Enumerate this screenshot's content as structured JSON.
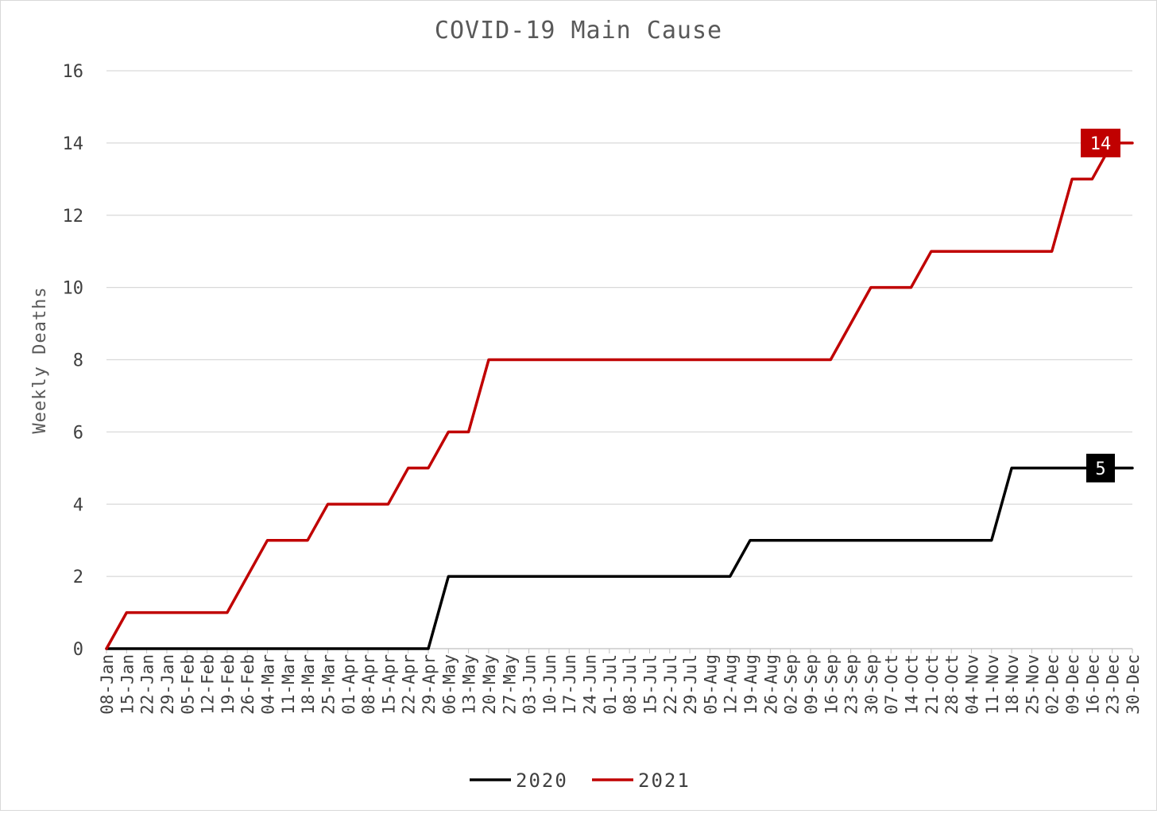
{
  "chart_data": {
    "type": "line",
    "title": "COVID-19 Main Cause",
    "xlabel": "",
    "ylabel": "Weekly Deaths",
    "ylim": [
      0,
      16
    ],
    "yticks": [
      0,
      2,
      4,
      6,
      8,
      10,
      12,
      14,
      16
    ],
    "grid": true,
    "legend_position": "bottom",
    "categories": [
      "08-Jan",
      "15-Jan",
      "22-Jan",
      "29-Jan",
      "05-Feb",
      "12-Feb",
      "19-Feb",
      "26-Feb",
      "04-Mar",
      "11-Mar",
      "18-Mar",
      "25-Mar",
      "01-Apr",
      "08-Apr",
      "15-Apr",
      "22-Apr",
      "29-Apr",
      "06-May",
      "13-May",
      "20-May",
      "27-May",
      "03-Jun",
      "10-Jun",
      "17-Jun",
      "24-Jun",
      "01-Jul",
      "08-Jul",
      "15-Jul",
      "22-Jul",
      "29-Jul",
      "05-Aug",
      "12-Aug",
      "19-Aug",
      "26-Aug",
      "02-Sep",
      "09-Sep",
      "16-Sep",
      "23-Sep",
      "30-Sep",
      "07-Oct",
      "14-Oct",
      "21-Oct",
      "28-Oct",
      "04-Nov",
      "11-Nov",
      "18-Nov",
      "25-Nov",
      "02-Dec",
      "09-Dec",
      "16-Dec",
      "23-Dec",
      "30-Dec"
    ],
    "series": [
      {
        "name": "2020",
        "color": "#000000",
        "values": [
          0,
          0,
          0,
          0,
          0,
          0,
          0,
          0,
          0,
          0,
          0,
          0,
          0,
          0,
          0,
          0,
          0,
          2,
          2,
          2,
          2,
          2,
          2,
          2,
          2,
          2,
          2,
          2,
          2,
          2,
          2,
          2,
          3,
          3,
          3,
          3,
          3,
          3,
          3,
          3,
          3,
          3,
          3,
          3,
          3,
          5,
          5,
          5,
          5,
          5,
          5,
          5
        ],
        "end_label": "5"
      },
      {
        "name": "2021",
        "color": "#c00000",
        "values": [
          0,
          1,
          1,
          1,
          1,
          1,
          1,
          2,
          3,
          3,
          3,
          4,
          4,
          4,
          4,
          5,
          5,
          6,
          6,
          8,
          8,
          8,
          8,
          8,
          8,
          8,
          8,
          8,
          8,
          8,
          8,
          8,
          8,
          8,
          8,
          8,
          8,
          9,
          10,
          10,
          10,
          11,
          11,
          11,
          11,
          11,
          11,
          11,
          13,
          13,
          14,
          14
        ],
        "end_label": "14"
      }
    ]
  }
}
